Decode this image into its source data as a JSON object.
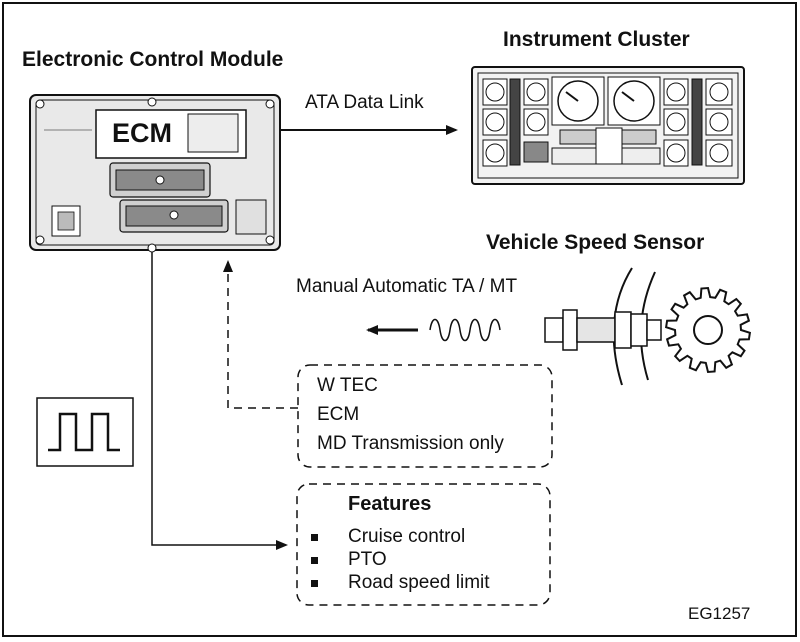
{
  "labels": {
    "ecm_title": "Electronic Control Module",
    "ecm_label": "ECM",
    "cluster_title": "Instrument Cluster",
    "data_link": "ATA Data Link",
    "vss_title": "Vehicle Speed Sensor",
    "transmission_types": "Manual Automatic TA / MT",
    "figure_id": "EG1257"
  },
  "applicability": [
    "W TEC",
    "ECM",
    "MD Transmission only"
  ],
  "features": {
    "title": "Features",
    "items": [
      "Cruise control",
      "PTO",
      "Road speed limit"
    ]
  },
  "colors": {
    "line": "#111111",
    "background": "#ffffff",
    "module_fill": "#e6e6e6"
  }
}
